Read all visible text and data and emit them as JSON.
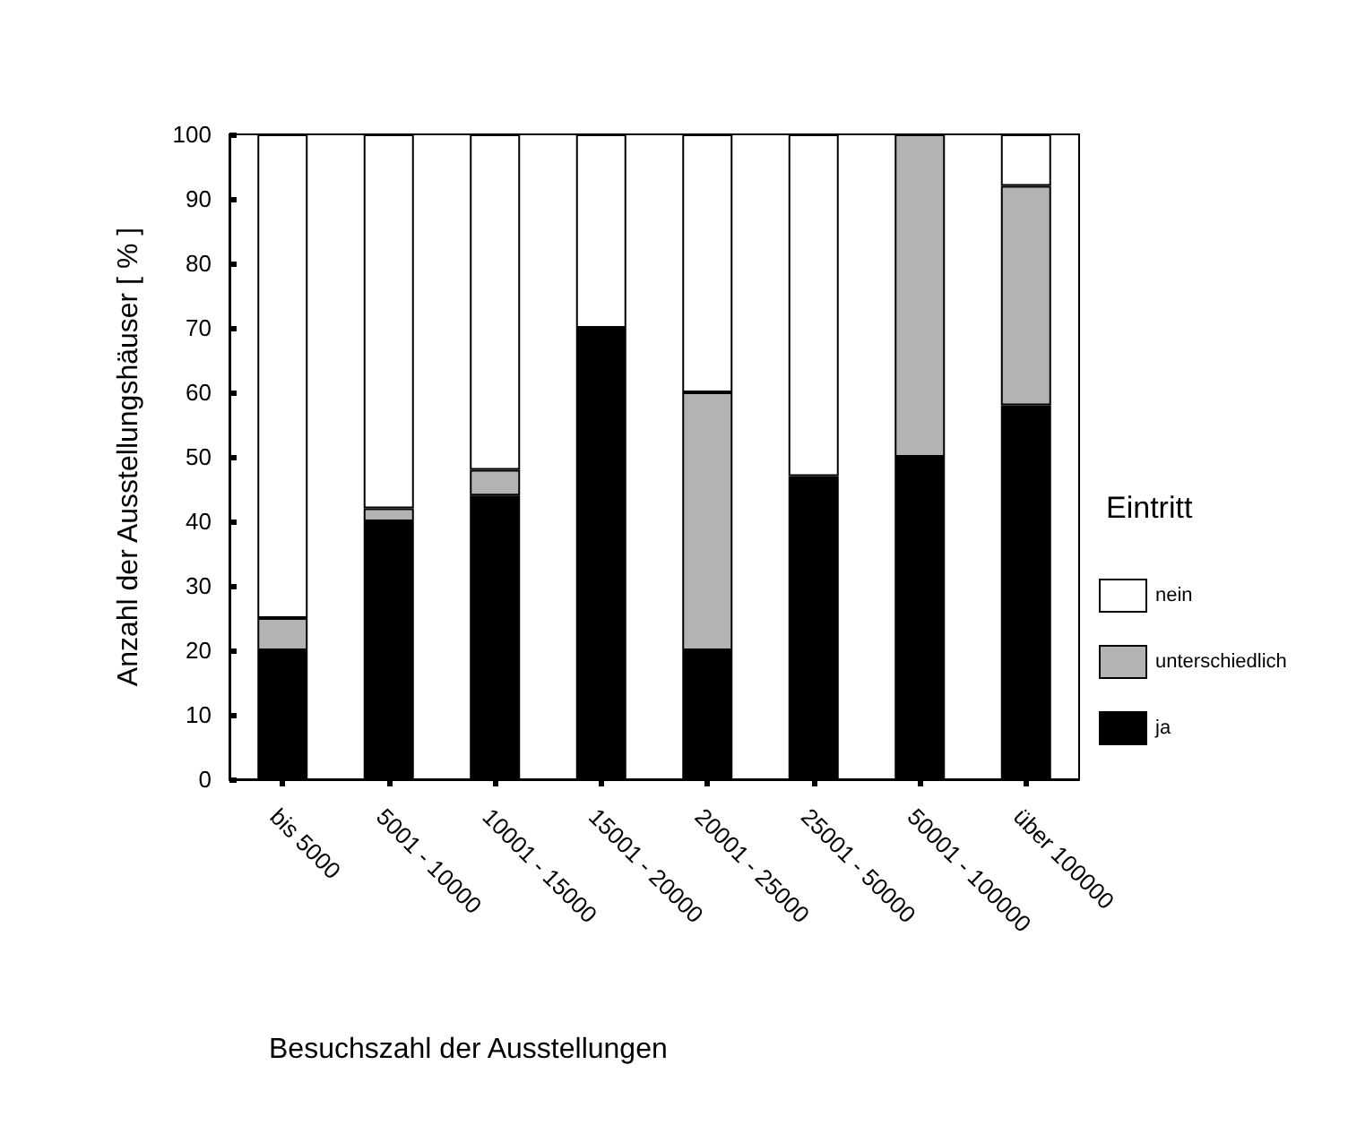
{
  "chart_data": {
    "type": "bar",
    "stacked": true,
    "xlabel": "Besuchszahl der Ausstellungen",
    "ylabel": "Anzahl der Ausstellungshäuser [ % ]",
    "legend_title": "Eintritt",
    "categories": [
      "bis 5000",
      "5001 - 10000",
      "10001 - 15000",
      "15001 - 20000",
      "20001 - 25000",
      "25001 - 50000",
      "50001 - 100000",
      "über 100000"
    ],
    "series": [
      {
        "name": "ja",
        "color": "#000000",
        "values": [
          20,
          40,
          44,
          70,
          20,
          47,
          50,
          58
        ]
      },
      {
        "name": "unterschiedlich",
        "color": "#b3b3b3",
        "values": [
          5,
          2,
          4,
          0,
          40,
          0,
          50,
          34
        ]
      },
      {
        "name": "nein",
        "color": "#ffffff",
        "values": [
          75,
          58,
          52,
          30,
          40,
          53,
          0,
          8
        ]
      }
    ],
    "ylim": [
      0,
      100
    ],
    "yticks": [
      0,
      10,
      20,
      30,
      40,
      50,
      60,
      70,
      80,
      90,
      100
    ],
    "grid": false,
    "legend": "right"
  }
}
